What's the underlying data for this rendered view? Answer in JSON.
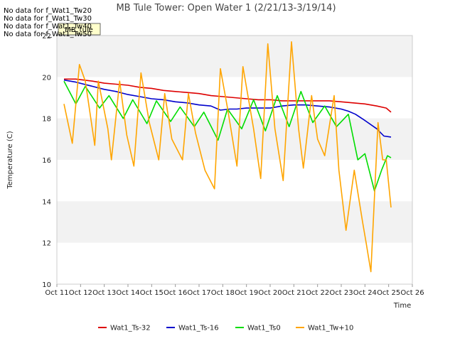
{
  "chart_data": {
    "type": "line",
    "title": "MB Tule Tower: Open Water 1 (2/21/13-3/19/14)",
    "xlabel": "Time",
    "ylabel": "Temperature (C)",
    "ylim": [
      10,
      22
    ],
    "xlim": [
      11,
      26
    ],
    "y_ticks": [
      10,
      12,
      14,
      16,
      18,
      20,
      22
    ],
    "x_ticks": [
      {
        "x": 11,
        "label": "Oct 11"
      },
      {
        "x": 12,
        "label": "Oct 12"
      },
      {
        "x": 13,
        "label": "Oct 13"
      },
      {
        "x": 14,
        "label": "Oct 14"
      },
      {
        "x": 15,
        "label": "Oct 15"
      },
      {
        "x": 16,
        "label": "Oct 16"
      },
      {
        "x": 17,
        "label": "Oct 17"
      },
      {
        "x": 18,
        "label": "Oct 18"
      },
      {
        "x": 19,
        "label": "Oct 19"
      },
      {
        "x": 20,
        "label": "Oct 20"
      },
      {
        "x": 21,
        "label": "Oct 21"
      },
      {
        "x": 22,
        "label": "Oct 22"
      },
      {
        "x": 23,
        "label": "Oct 23"
      },
      {
        "x": 24,
        "label": "Oct 24"
      },
      {
        "x": 25,
        "label": "Oct 25"
      },
      {
        "x": 26,
        "label": "Oct 26"
      }
    ],
    "grid": "horizontal bands",
    "legend_position": "bottom",
    "no_data_messages": [
      "No data for f_Wat1_Tw20",
      "No data for f_Wat1_Tw30",
      "No data for f_Wat1_Tw40",
      "No data for f_Wat1_Tw50"
    ],
    "annotation_box": "MB_tule",
    "series": [
      {
        "name": "Wat1_Ts-32",
        "color": "#dd0000",
        "x": [
          11.3,
          11.8,
          12.5,
          13.0,
          13.5,
          14.0,
          14.5,
          15.0,
          15.5,
          16.0,
          16.5,
          17.0,
          17.5,
          18.0,
          18.5,
          19.0,
          19.5,
          20.0,
          20.5,
          21.0,
          21.5,
          22.0,
          22.5,
          23.0,
          23.5,
          24.0,
          24.5,
          24.9,
          25.1
        ],
        "y": [
          19.9,
          19.9,
          19.8,
          19.7,
          19.65,
          19.6,
          19.5,
          19.45,
          19.35,
          19.3,
          19.25,
          19.2,
          19.1,
          19.05,
          19.0,
          18.95,
          18.9,
          18.9,
          18.85,
          18.85,
          18.85,
          18.85,
          18.85,
          18.8,
          18.75,
          18.7,
          18.6,
          18.5,
          18.3
        ]
      },
      {
        "name": "Wat1_Ts-16",
        "color": "#0000cc",
        "x": [
          11.3,
          11.8,
          12.5,
          13.0,
          13.5,
          14.0,
          14.5,
          15.0,
          15.5,
          16.0,
          16.5,
          17.0,
          17.5,
          17.9,
          18.3,
          18.6,
          19.0,
          19.5,
          20.0,
          20.5,
          21.0,
          21.5,
          22.0,
          22.5,
          23.0,
          23.3,
          23.6,
          24.0,
          24.5,
          24.8,
          25.1
        ],
        "y": [
          19.85,
          19.75,
          19.55,
          19.4,
          19.3,
          19.15,
          19.05,
          18.95,
          18.9,
          18.8,
          18.75,
          18.65,
          18.6,
          18.4,
          18.45,
          18.45,
          18.5,
          18.5,
          18.5,
          18.6,
          18.65,
          18.65,
          18.6,
          18.55,
          18.45,
          18.35,
          18.2,
          17.9,
          17.5,
          17.15,
          17.1
        ]
      },
      {
        "name": "Wat1_Ts0",
        "color": "#00dd00",
        "x": [
          11.3,
          11.8,
          12.2,
          12.8,
          13.2,
          13.8,
          14.2,
          14.8,
          15.2,
          15.8,
          16.2,
          16.8,
          17.2,
          17.8,
          18.2,
          18.8,
          19.3,
          19.8,
          20.3,
          20.8,
          21.3,
          21.8,
          22.3,
          22.8,
          23.3,
          23.7,
          24.0,
          24.4,
          24.7,
          24.95,
          25.1
        ],
        "y": [
          19.8,
          18.7,
          19.55,
          18.5,
          19.1,
          18.0,
          18.9,
          17.75,
          18.85,
          17.85,
          18.55,
          17.6,
          18.3,
          16.95,
          18.45,
          17.5,
          18.9,
          17.4,
          19.1,
          17.6,
          19.3,
          17.8,
          18.6,
          17.6,
          18.2,
          16.0,
          16.3,
          14.5,
          15.5,
          16.2,
          16.1
        ]
      },
      {
        "name": "Wat1_Tw+10",
        "color": "#ffa500",
        "x": [
          11.3,
          11.65,
          11.95,
          12.2,
          12.6,
          12.75,
          13.15,
          13.3,
          13.65,
          13.95,
          14.25,
          14.55,
          14.9,
          15.3,
          15.55,
          15.85,
          16.3,
          16.55,
          16.85,
          17.25,
          17.65,
          17.9,
          18.2,
          18.6,
          18.85,
          19.3,
          19.6,
          19.9,
          20.2,
          20.55,
          20.9,
          21.2,
          21.4,
          21.75,
          22.0,
          22.3,
          22.7,
          22.9,
          23.2,
          23.55,
          23.9,
          24.05,
          24.25,
          24.55,
          24.75,
          24.9,
          25.1
        ],
        "y": [
          18.7,
          16.8,
          20.6,
          19.8,
          16.7,
          19.8,
          17.5,
          16.0,
          19.8,
          17.2,
          15.7,
          20.2,
          17.8,
          16.0,
          19.2,
          17.0,
          16.0,
          19.2,
          17.3,
          15.5,
          14.6,
          20.4,
          18.5,
          15.7,
          20.5,
          17.5,
          15.1,
          21.6,
          17.5,
          15.0,
          21.7,
          17.5,
          15.6,
          19.1,
          17.0,
          16.2,
          19.1,
          15.5,
          12.6,
          15.5,
          13.0,
          12.0,
          10.6,
          17.8,
          16.0,
          16.0,
          13.7
        ]
      }
    ]
  }
}
